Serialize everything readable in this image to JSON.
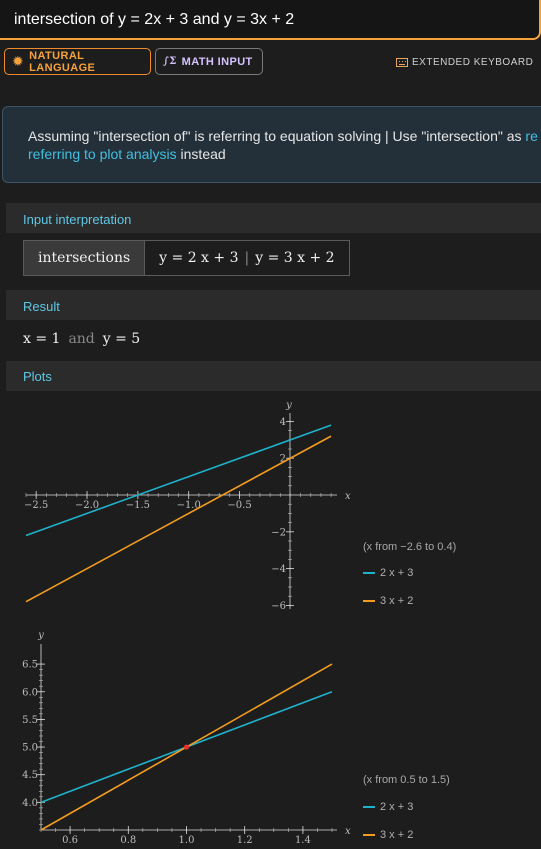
{
  "query": {
    "text": "intersection of y = 2x + 3 and y = 3x + 2"
  },
  "toolbar": {
    "natural_language": "NATURAL LANGUAGE",
    "math_input": "MATH INPUT",
    "extended_keyboard": "EXTENDED KEYBOARD"
  },
  "assumption": {
    "prefix": "Assuming \"intersection of\" is referring to equation solving | Use \"intersection\" as ",
    "link1": "re",
    "link2": "referring to plot analysis",
    "suffix": " instead"
  },
  "input_interpretation": {
    "title": "Input interpretation",
    "cell_a": "intersections",
    "eq1": "y = 2 x + 3",
    "separator": "|",
    "eq2": "y = 3 x + 2"
  },
  "result": {
    "title": "Result",
    "x_part": "x = 1",
    "and": "and",
    "y_part": "y = 5"
  },
  "plots": {
    "title": "Plots",
    "plot1_range": "(x from −2.6 to 0.4)",
    "plot2_range": "(x from 0.5 to 1.5)",
    "series1_label": "2 x + 3",
    "series2_label": "3 x + 2",
    "series1_color": "#1fb2cc",
    "series2_color": "#f39c1f",
    "point_color": "#e53030"
  },
  "chart_data": [
    {
      "type": "line",
      "xlabel": "x",
      "ylabel": "y",
      "xlim": [
        -2.6,
        0.4
      ],
      "ylim": [
        -6,
        4
      ],
      "xticks": [
        "−2.5",
        "−2.0",
        "−1.5",
        "−1.0",
        "−0.5"
      ],
      "yticks": [
        "4",
        "2",
        "−2",
        "−4",
        "−6"
      ],
      "series": [
        {
          "name": "2 x + 3",
          "x": [
            -2.6,
            0.4
          ],
          "y": [
            -2.2,
            3.8
          ]
        },
        {
          "name": "3 x + 2",
          "x": [
            -2.6,
            0.4
          ],
          "y": [
            -5.8,
            3.2
          ]
        }
      ]
    },
    {
      "type": "line",
      "xlabel": "x",
      "ylabel": "y",
      "xlim": [
        0.5,
        1.5
      ],
      "ylim": [
        3.5,
        6.5
      ],
      "xticks": [
        "0.6",
        "0.8",
        "1.0",
        "1.2",
        "1.4"
      ],
      "yticks": [
        "6.5",
        "6.0",
        "5.5",
        "5.0",
        "4.5",
        "4.0"
      ],
      "series": [
        {
          "name": "2 x + 3",
          "x": [
            0.5,
            1.5
          ],
          "y": [
            4.0,
            6.0
          ]
        },
        {
          "name": "3 x + 2",
          "x": [
            0.5,
            1.5
          ],
          "y": [
            3.5,
            6.5
          ]
        }
      ],
      "points": [
        {
          "x": 1,
          "y": 5
        }
      ]
    }
  ]
}
